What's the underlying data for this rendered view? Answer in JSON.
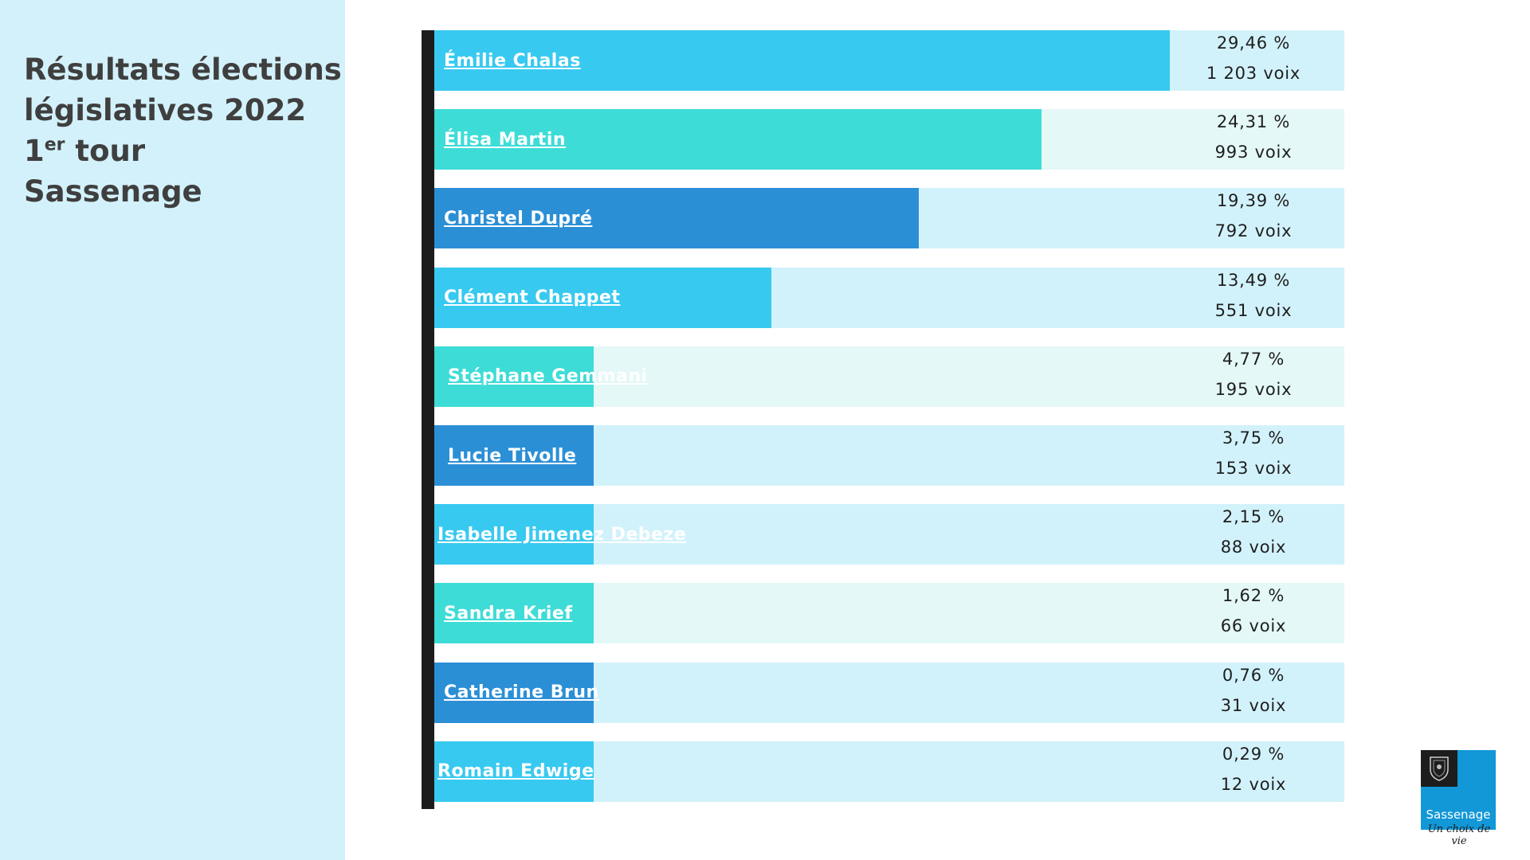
{
  "title": {
    "line1": "Résultats élections",
    "line2": "législatives 2022",
    "line3_num": "1",
    "line3_sup": "er",
    "line3_rest": " tour",
    "line4": "Sassenage"
  },
  "logo": {
    "name": "Sassenage",
    "slogan": "Un choix de vie",
    "icon": "coat-of-arms-icon"
  },
  "colors": {
    "panel": "#d3f1fa",
    "title_text": "#3f3f3f",
    "axis": "#1c1c1c",
    "bar_blue": "#38c9f0",
    "bar_teal": "#3edcd7",
    "bar_dark": "#2b8fd6",
    "track_light_blue": "#d2f2fb",
    "track_light_teal": "#e3f8f7",
    "logo_blue": "#1297d7"
  },
  "chart_data": {
    "type": "bar",
    "orientation": "horizontal",
    "title": "Résultats élections législatives 2022 1er tour Sassenage",
    "xlabel": "",
    "ylabel": "",
    "grid": false,
    "legend": "none",
    "xlim": [
      0,
      29.46
    ],
    "categories": [
      "Émilie Chalas",
      "Élisa Martin",
      "Christel Dupré",
      "Clément Chappet",
      "Stéphane Gemmani",
      "Lucie Tivolle",
      "Isabelle Jimenez Debeze",
      "Sandra Krief",
      "Catherine Brun",
      "Romain Edwige"
    ],
    "values": [
      29.46,
      24.31,
      19.39,
      13.49,
      4.77,
      3.75,
      2.15,
      1.62,
      0.76,
      0.29
    ],
    "votes": [
      1203,
      993,
      792,
      551,
      195,
      153,
      88,
      66,
      31,
      12
    ],
    "percent_labels": [
      "29,46 %",
      "24,31 %",
      "19,39 %",
      "13,49 %",
      "4,77 %",
      "3,75 %",
      "2,15 %",
      "1,62 %",
      "0,76 %",
      "0,29 %"
    ],
    "vote_labels": [
      "1 203 voix",
      "993 voix",
      "792 voix",
      "551 voix",
      "195 voix",
      "153 voix",
      "88 voix",
      "66 voix",
      "31 voix",
      "12 voix"
    ],
    "bar_colors": [
      "#38c9f0",
      "#3edcd7",
      "#2b8fd6",
      "#38c9f0",
      "#3edcd7",
      "#2b8fd6",
      "#38c9f0",
      "#3edcd7",
      "#2b8fd6",
      "#38c9f0"
    ],
    "track_colors": [
      "#d2f2fb",
      "#e3f8f7",
      "#d2f2fb",
      "#d2f2fb",
      "#e3f8f7",
      "#d2f2fb",
      "#d2f2fb",
      "#e3f8f7",
      "#d2f2fb",
      "#d2f2fb"
    ]
  }
}
